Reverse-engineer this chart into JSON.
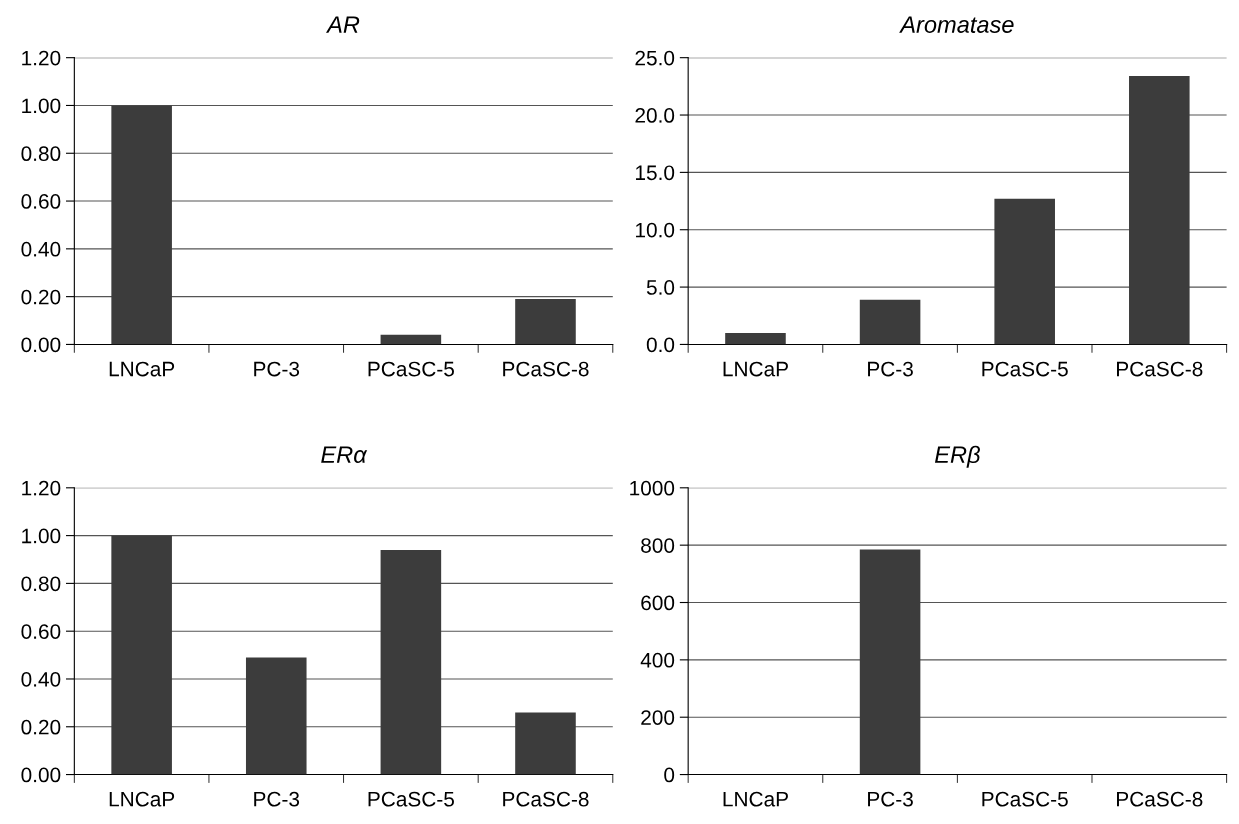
{
  "chart_data": [
    {
      "type": "bar",
      "title": "AR",
      "categories": [
        "LNCaP",
        "PC-3",
        "PCaSC-5",
        "PCaSC-8"
      ],
      "values": [
        1.0,
        0.0,
        0.04,
        0.19
      ],
      "color": "#3c3c3c",
      "ylim": [
        0,
        1.2
      ],
      "yticks": [
        {
          "value": 0,
          "label": "0.00"
        },
        {
          "value": 0.2,
          "label": "0.20"
        },
        {
          "value": 0.4,
          "label": "0.40"
        },
        {
          "value": 0.6,
          "label": "0.60"
        },
        {
          "value": 0.8,
          "label": "0.80"
        },
        {
          "value": 1.0,
          "label": "1.00"
        },
        {
          "value": 1.2,
          "label": "1.20"
        }
      ],
      "grid": "y"
    },
    {
      "type": "bar",
      "title": "Aromatase",
      "categories": [
        "LNCaP",
        "PC-3",
        "PCaSC-5",
        "PCaSC-8"
      ],
      "values": [
        1.0,
        3.9,
        12.7,
        23.4
      ],
      "color": "#3c3c3c",
      "ylim": [
        0,
        25
      ],
      "yticks": [
        {
          "value": 0,
          "label": "0.0"
        },
        {
          "value": 5,
          "label": "5.0"
        },
        {
          "value": 10,
          "label": "10.0"
        },
        {
          "value": 15,
          "label": "15.0"
        },
        {
          "value": 20,
          "label": "20.0"
        },
        {
          "value": 25,
          "label": "25.0"
        }
      ],
      "grid": "y"
    },
    {
      "type": "bar",
      "title": "ERα",
      "categories": [
        "LNCaP",
        "PC-3",
        "PCaSC-5",
        "PCaSC-8"
      ],
      "values": [
        1.0,
        0.49,
        0.94,
        0.26
      ],
      "color": "#3c3c3c",
      "ylim": [
        0,
        1.2
      ],
      "yticks": [
        {
          "value": 0,
          "label": "0.00"
        },
        {
          "value": 0.2,
          "label": "0.20"
        },
        {
          "value": 0.4,
          "label": "0.40"
        },
        {
          "value": 0.6,
          "label": "0.60"
        },
        {
          "value": 0.8,
          "label": "0.80"
        },
        {
          "value": 1.0,
          "label": "1.00"
        },
        {
          "value": 1.2,
          "label": "1.20"
        }
      ],
      "grid": "y"
    },
    {
      "type": "bar",
      "title": "ERβ",
      "categories": [
        "LNCaP",
        "PC-3",
        "PCaSC-5",
        "PCaSC-8"
      ],
      "values": [
        null,
        785,
        null,
        null
      ],
      "color": "#3c3c3c",
      "ylim": [
        0,
        1000
      ],
      "yticks": [
        0,
        200,
        400,
        600,
        800,
        1000
      ],
      "grid": "y"
    }
  ]
}
